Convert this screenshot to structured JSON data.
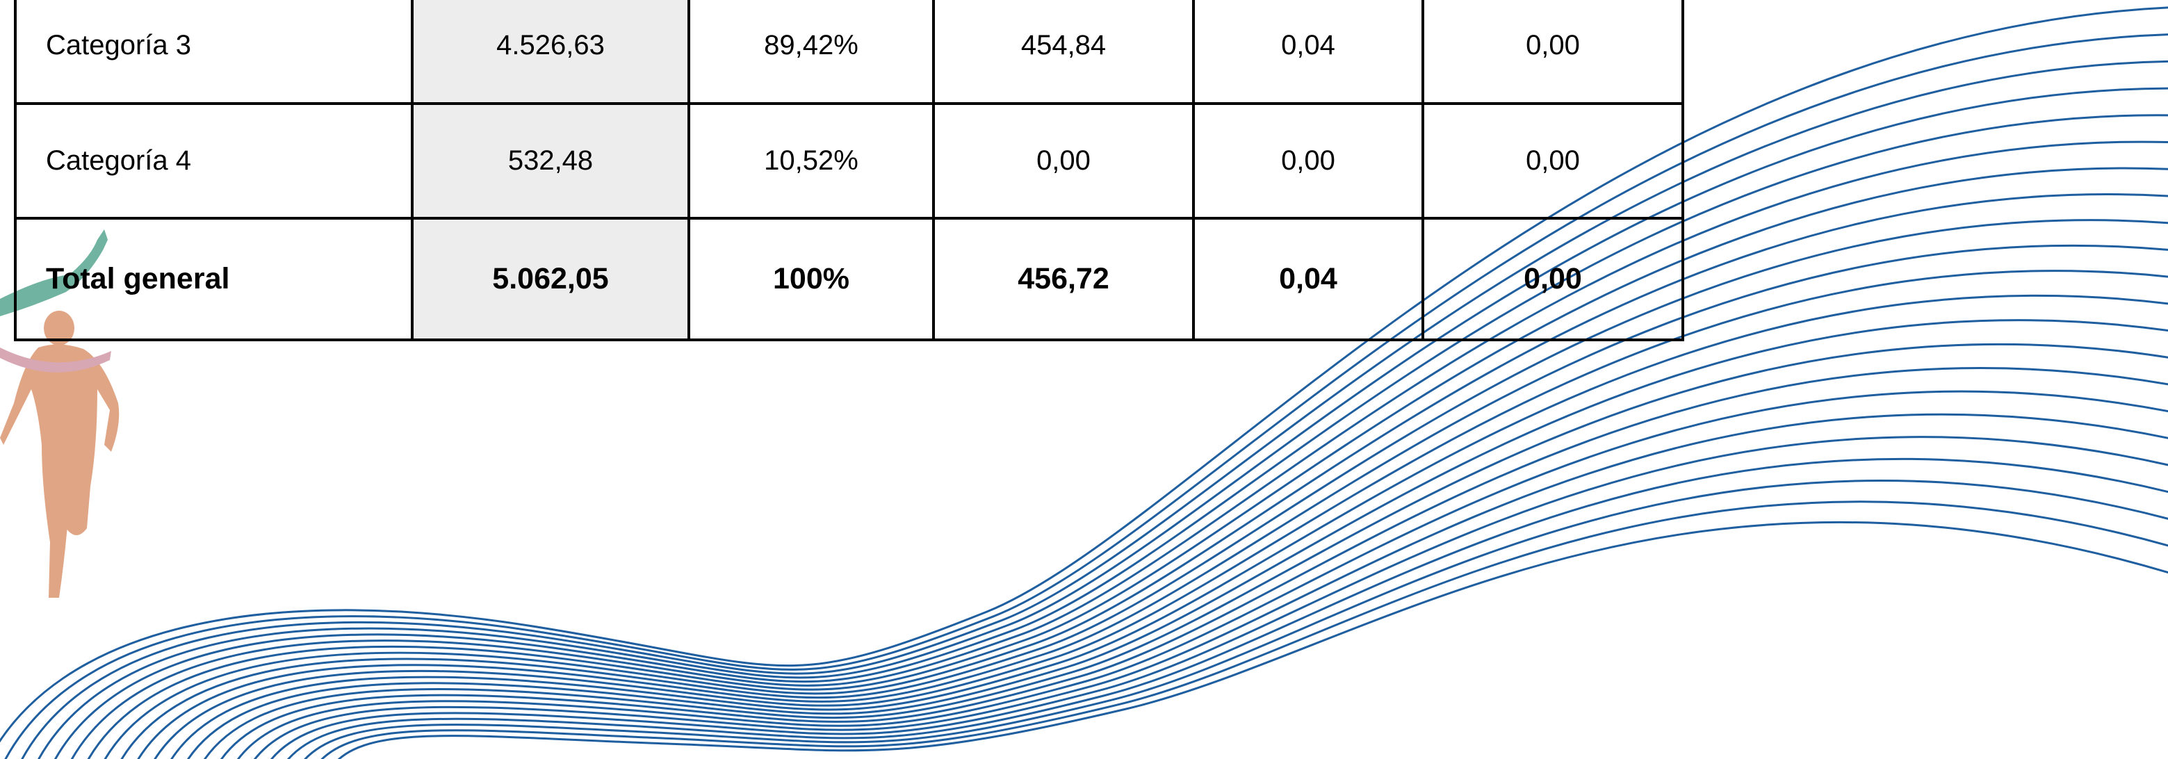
{
  "table": {
    "rows": [
      [
        "Categoría 3",
        "4.526,63",
        "89,42%",
        "454,84",
        "0,04",
        "0,00"
      ],
      [
        "Categoría 4",
        "532,48",
        "10,52%",
        "0,00",
        "0,00",
        "0,00"
      ],
      [
        "Total general",
        "5.062,05",
        "100%",
        "456,72",
        "0,04",
        "0,00"
      ]
    ]
  }
}
